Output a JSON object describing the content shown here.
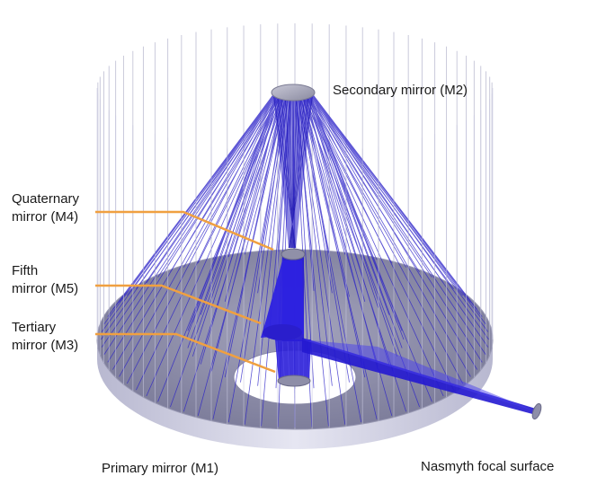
{
  "labels": {
    "secondary": "Secondary mirror (M2)",
    "quaternary_line1": "Quaternary",
    "quaternary_line2": "mirror (M4)",
    "fifth_line1": "Fifth",
    "fifth_line2": "mirror (M5)",
    "tertiary_line1": "Tertiary",
    "tertiary_line2": "mirror (M3)",
    "primary": "Primary mirror (M1)",
    "nasmyth": "Nasmyth focal surface"
  },
  "colors": {
    "ray": "#2a20c8",
    "leader": "#f0a040",
    "mirror_fill": "#8e8ea8",
    "mirror_edge": "#c8c8dc",
    "cylinder": "#b4b4cc"
  }
}
